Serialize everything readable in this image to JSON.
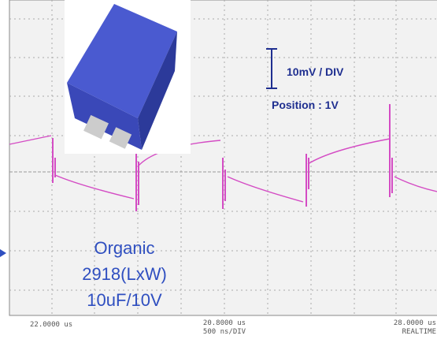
{
  "scale": {
    "volts_per_div": "10mV / DIV",
    "position": "Position : 1V"
  },
  "component": {
    "lines": [
      "Organic",
      "2918(LxW)",
      "10uF/10V"
    ]
  },
  "footer": {
    "left": "22.0000 us",
    "center": "20.8000 us",
    "timebase": "500 ns/DIV",
    "right": "28.0000 us",
    "mode": "REALTIME"
  }
}
